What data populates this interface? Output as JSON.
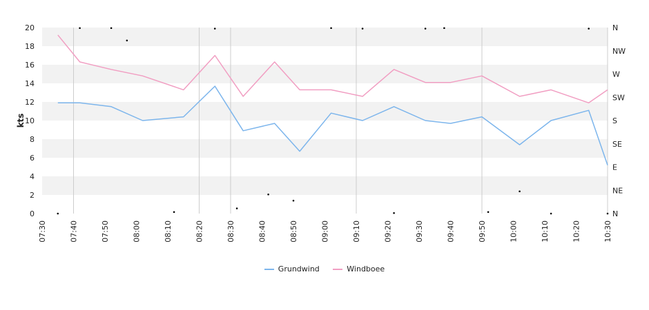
{
  "chart_data": {
    "type": "line",
    "ylabel": "kts",
    "ylim": [
      0,
      20
    ],
    "y_ticks": [
      "0",
      "2",
      "4",
      "6",
      "8",
      "10",
      "12",
      "14",
      "16",
      "18",
      "20"
    ],
    "x_range": [
      "07:30",
      "10:30"
    ],
    "x_ticks": [
      "07:30",
      "07:40",
      "07:50",
      "08:00",
      "08:10",
      "08:20",
      "08:30",
      "08:40",
      "08:50",
      "09:00",
      "09:10",
      "09:20",
      "09:30",
      "09:40",
      "09:50",
      "10:00",
      "10:10",
      "10:20",
      "10:30"
    ],
    "x_times": [
      "07:35",
      "07:42",
      "07:52",
      "08:02",
      "08:15",
      "08:25",
      "08:34",
      "08:44",
      "08:52",
      "09:02",
      "09:12",
      "09:22",
      "09:32",
      "09:40",
      "09:50",
      "10:02",
      "10:12",
      "10:24",
      "10:30"
    ],
    "series": [
      {
        "name": "Grundwind",
        "color": "#7cb5ec",
        "values": [
          11.9,
          11.9,
          11.5,
          10.0,
          10.4,
          13.7,
          8.9,
          9.7,
          6.7,
          10.8,
          10.0,
          11.5,
          10.0,
          9.7,
          10.4,
          7.4,
          10.0,
          11.1,
          5.2
        ]
      },
      {
        "name": "Windboee",
        "color": "#f19ec2",
        "values": [
          19.2,
          16.3,
          15.5,
          14.8,
          13.3,
          17.0,
          12.6,
          16.3,
          13.3,
          13.3,
          12.6,
          15.5,
          14.1,
          14.1,
          14.8,
          12.6,
          13.3,
          11.9,
          13.3
        ]
      }
    ],
    "direction_axis": {
      "labels": [
        "N",
        "NE",
        "E",
        "SE",
        "S",
        "SW",
        "W",
        "NW",
        "N"
      ],
      "range_deg": [
        0,
        360
      ],
      "points": [
        {
          "t": "07:35",
          "deg": 0
        },
        {
          "t": "07:42",
          "deg": 359
        },
        {
          "t": "07:52",
          "deg": 359
        },
        {
          "t": "07:57",
          "deg": 335
        },
        {
          "t": "08:12",
          "deg": 3
        },
        {
          "t": "08:25",
          "deg": 358
        },
        {
          "t": "08:32",
          "deg": 10
        },
        {
          "t": "08:42",
          "deg": 37
        },
        {
          "t": "08:50",
          "deg": 25
        },
        {
          "t": "09:02",
          "deg": 359
        },
        {
          "t": "09:12",
          "deg": 358
        },
        {
          "t": "09:22",
          "deg": 1
        },
        {
          "t": "09:32",
          "deg": 358
        },
        {
          "t": "09:38",
          "deg": 359
        },
        {
          "t": "09:52",
          "deg": 3
        },
        {
          "t": "10:02",
          "deg": 43
        },
        {
          "t": "10:12",
          "deg": 0
        },
        {
          "t": "10:24",
          "deg": 358
        },
        {
          "t": "10:30",
          "deg": 0
        }
      ]
    },
    "grid": true,
    "legend_position": "bottom-center"
  }
}
